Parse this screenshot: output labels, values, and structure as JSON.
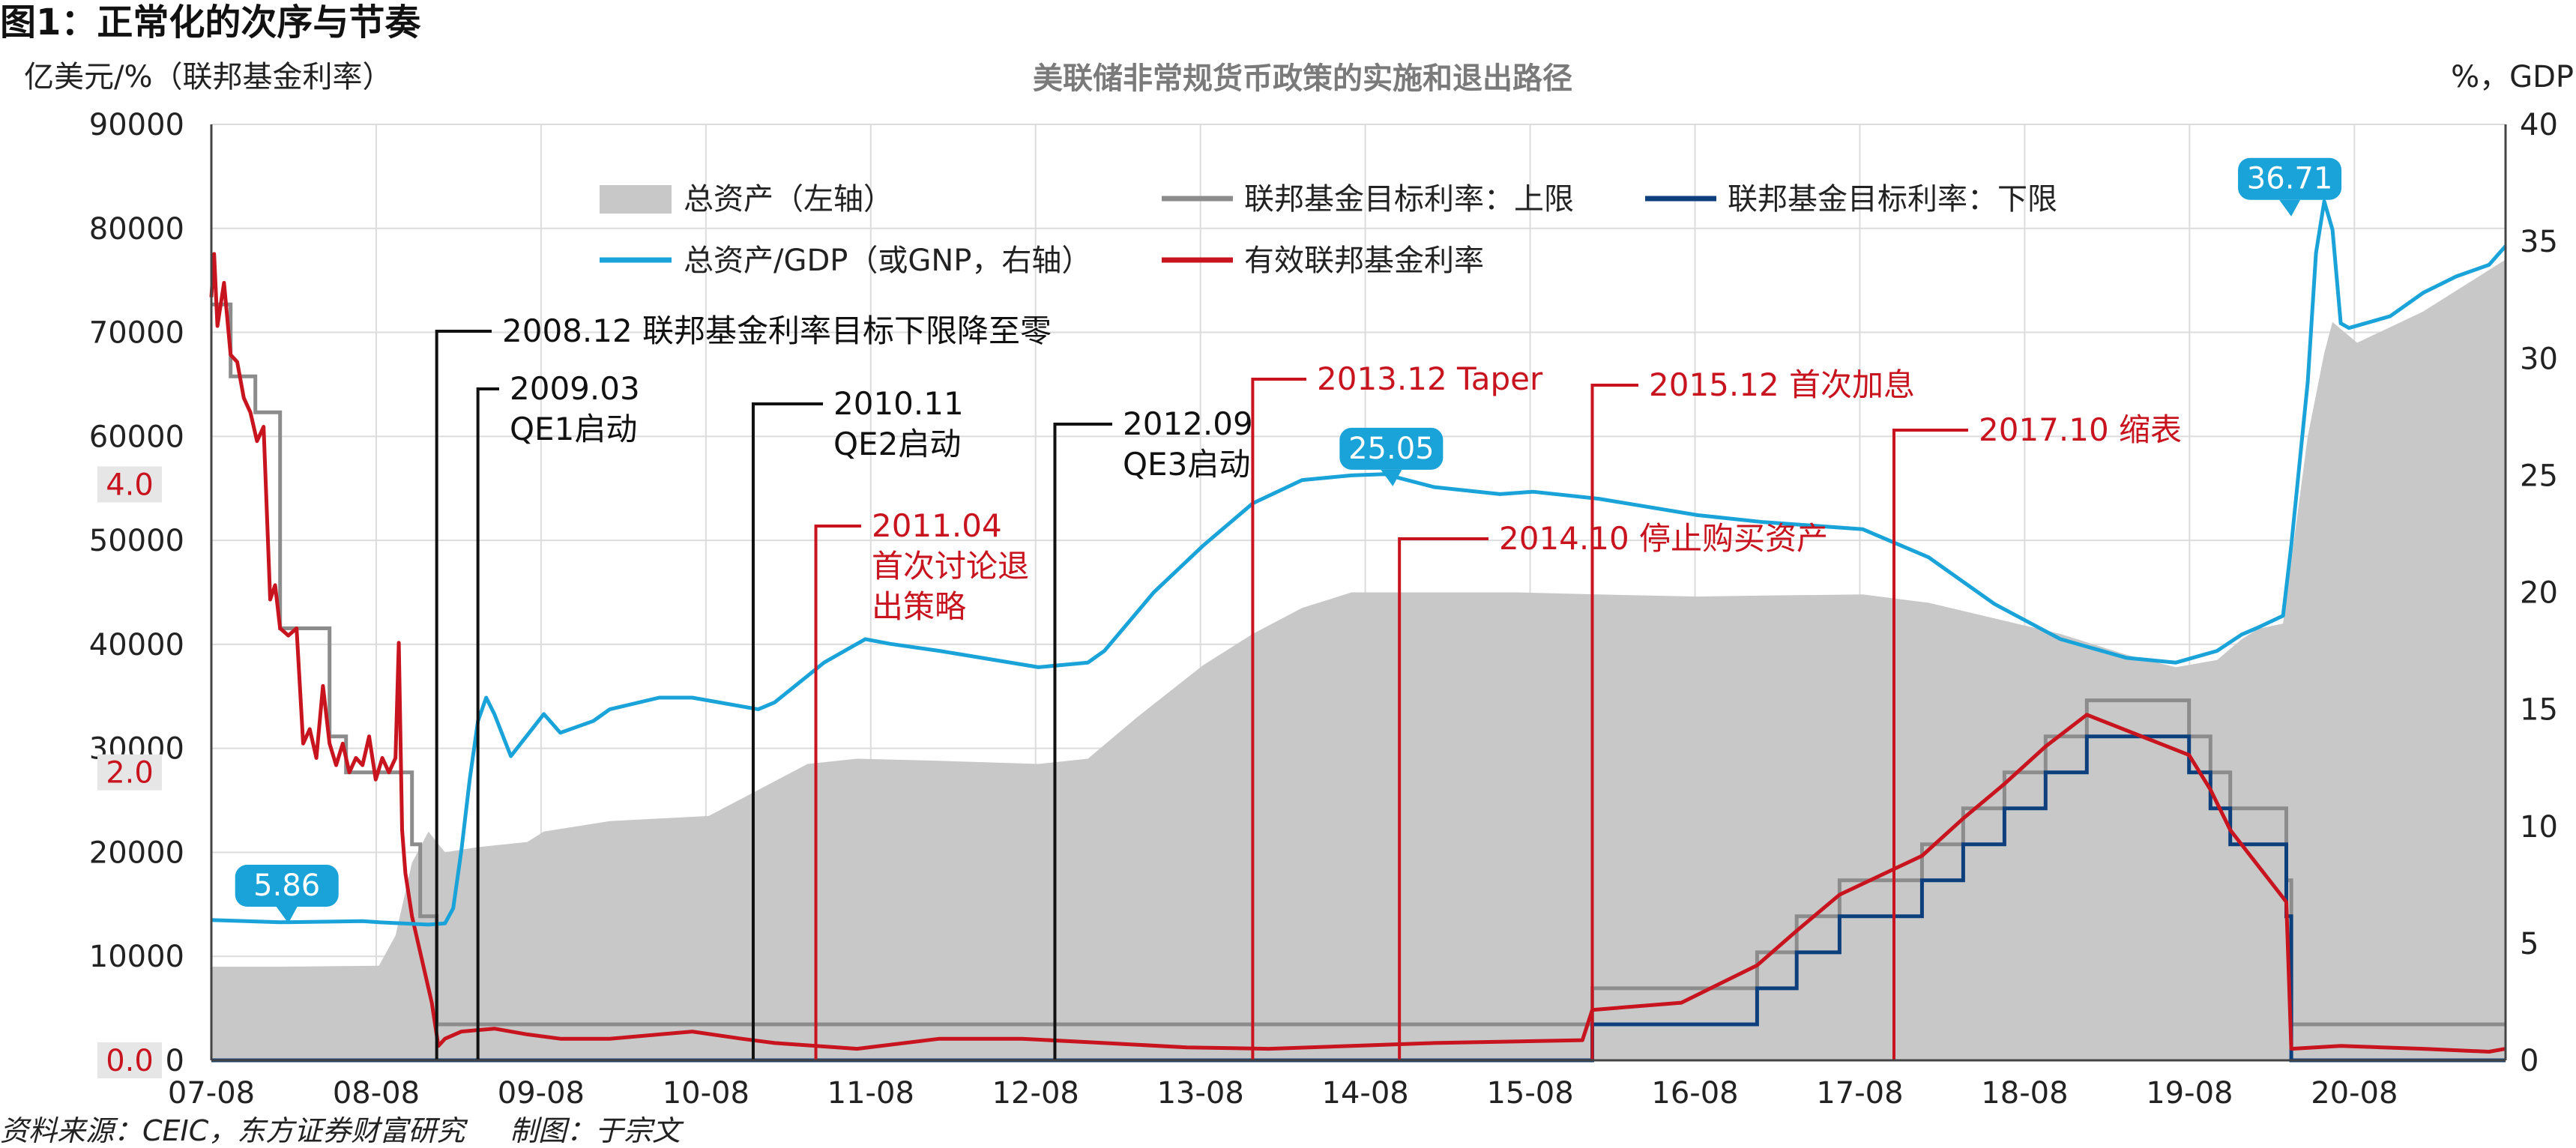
{
  "figure": {
    "title": "图1：正常化的次序与节奏",
    "subtitle": "美联储非常规货币政策的实施和退出路径",
    "left_unit": "亿美元/%（联邦基金利率）",
    "right_unit": "%，GDP",
    "source": "资料来源：CEIC，东方证券财富研究",
    "credit": "制图：于宗文"
  },
  "colors": {
    "assets": "#c8c8c8",
    "upper": "#8c8c8c",
    "lower": "#0d3f7d",
    "gdp": "#1aa3d9",
    "effr": "#c8141e",
    "annotation_black": "#111111",
    "annotation_red": "#c8141e"
  },
  "chart_data": {
    "type": "area",
    "title": "美联储非常规货币政策的实施和退出路径",
    "ylabel": "亿美元/%（联邦基金利率）",
    "y2label": "%，GDP",
    "xlim": [
      2007.583,
      2021.5
    ],
    "ylim": [
      0,
      90000
    ],
    "y2lim": [
      0,
      40
    ],
    "grid": true,
    "legend_position": "top",
    "x_ticks": [
      {
        "label": "07-08",
        "x": 2007.583
      },
      {
        "label": "08-08",
        "x": 2008.583
      },
      {
        "label": "09-08",
        "x": 2009.583
      },
      {
        "label": "10-08",
        "x": 2010.583
      },
      {
        "label": "11-08",
        "x": 2011.583
      },
      {
        "label": "12-08",
        "x": 2012.583
      },
      {
        "label": "13-08",
        "x": 2013.583
      },
      {
        "label": "14-08",
        "x": 2014.583
      },
      {
        "label": "15-08",
        "x": 2015.583
      },
      {
        "label": "16-08",
        "x": 2016.583
      },
      {
        "label": "17-08",
        "x": 2017.583
      },
      {
        "label": "18-08",
        "x": 2018.583
      },
      {
        "label": "19-08",
        "x": 2019.583
      },
      {
        "label": "20-08",
        "x": 2020.583
      }
    ],
    "y_ticks": [
      "0",
      "10000",
      "20000",
      "30000",
      "40000",
      "50000",
      "60000",
      "70000",
      "80000",
      "90000"
    ],
    "y2_ticks": [
      "0",
      "5",
      "10",
      "15",
      "20",
      "25",
      "30",
      "35",
      "40"
    ],
    "rate_ticks": [
      {
        "label": "0.0",
        "value": 0.0
      },
      {
        "label": "2.0",
        "value": 2.0
      },
      {
        "label": "4.0",
        "value": 4.0
      }
    ],
    "series": [
      {
        "name": "总资产（左轴）",
        "axis": "left",
        "type": "area",
        "points": [
          [
            2007.583,
            9000
          ],
          [
            2008.0,
            9000
          ],
          [
            2008.6,
            9100
          ],
          [
            2008.7,
            12000
          ],
          [
            2008.8,
            19000
          ],
          [
            2008.9,
            22000
          ],
          [
            2009.0,
            20000
          ],
          [
            2009.2,
            20500
          ],
          [
            2009.5,
            21000
          ],
          [
            2009.6,
            22000
          ],
          [
            2010.0,
            23000
          ],
          [
            2010.6,
            23500
          ],
          [
            2010.9,
            26000
          ],
          [
            2011.2,
            28500
          ],
          [
            2011.5,
            29000
          ],
          [
            2012.0,
            28800
          ],
          [
            2012.6,
            28500
          ],
          [
            2012.9,
            29000
          ],
          [
            2013.2,
            33000
          ],
          [
            2013.6,
            38000
          ],
          [
            2013.9,
            41000
          ],
          [
            2014.2,
            43500
          ],
          [
            2014.5,
            45000
          ],
          [
            2014.9,
            45000
          ],
          [
            2015.5,
            45000
          ],
          [
            2016.0,
            44800
          ],
          [
            2016.6,
            44600
          ],
          [
            2017.0,
            44700
          ],
          [
            2017.6,
            44800
          ],
          [
            2018.0,
            44000
          ],
          [
            2018.4,
            42500
          ],
          [
            2018.8,
            41000
          ],
          [
            2019.2,
            39000
          ],
          [
            2019.5,
            37800
          ],
          [
            2019.75,
            38500
          ],
          [
            2019.9,
            40500
          ],
          [
            2020.0,
            41500
          ],
          [
            2020.15,
            42000
          ],
          [
            2020.2,
            48000
          ],
          [
            2020.3,
            60000
          ],
          [
            2020.4,
            68000
          ],
          [
            2020.45,
            71000
          ],
          [
            2020.6,
            69000
          ],
          [
            2020.8,
            70500
          ],
          [
            2021.0,
            72000
          ],
          [
            2021.2,
            74000
          ],
          [
            2021.4,
            76000
          ],
          [
            2021.5,
            77000
          ]
        ]
      },
      {
        "name": "联邦基金目标利率：上限",
        "axis": "rate",
        "type": "step",
        "points": [
          [
            2007.583,
            5.25
          ],
          [
            2007.7,
            4.75
          ],
          [
            2007.85,
            4.5
          ],
          [
            2008.0,
            3.0
          ],
          [
            2008.3,
            2.25
          ],
          [
            2008.4,
            2.0
          ],
          [
            2008.8,
            1.5
          ],
          [
            2008.85,
            1.0
          ],
          [
            2008.95,
            0.25
          ],
          [
            2015.96,
            0.5
          ],
          [
            2016.96,
            0.75
          ],
          [
            2017.2,
            1.0
          ],
          [
            2017.46,
            1.25
          ],
          [
            2017.96,
            1.5
          ],
          [
            2018.21,
            1.75
          ],
          [
            2018.46,
            2.0
          ],
          [
            2018.71,
            2.25
          ],
          [
            2018.96,
            2.5
          ],
          [
            2019.58,
            2.25
          ],
          [
            2019.71,
            2.0
          ],
          [
            2019.83,
            1.75
          ],
          [
            2020.17,
            1.25
          ],
          [
            2020.2,
            0.25
          ],
          [
            2021.5,
            0.25
          ]
        ]
      },
      {
        "name": "联邦基金目标利率：下限",
        "axis": "rate",
        "type": "step",
        "points": [
          [
            2007.583,
            0.0
          ],
          [
            2008.95,
            0.0
          ],
          [
            2015.96,
            0.25
          ],
          [
            2016.96,
            0.5
          ],
          [
            2017.2,
            0.75
          ],
          [
            2017.46,
            1.0
          ],
          [
            2017.96,
            1.25
          ],
          [
            2018.21,
            1.5
          ],
          [
            2018.46,
            1.75
          ],
          [
            2018.71,
            2.0
          ],
          [
            2018.96,
            2.25
          ],
          [
            2019.58,
            2.0
          ],
          [
            2019.71,
            1.75
          ],
          [
            2019.83,
            1.5
          ],
          [
            2020.17,
            1.0
          ],
          [
            2020.2,
            0.0
          ],
          [
            2021.5,
            0.0
          ]
        ]
      },
      {
        "name": "有效联邦基金利率",
        "axis": "rate",
        "type": "line",
        "points": [
          [
            2007.583,
            5.3
          ],
          [
            2007.6,
            5.6
          ],
          [
            2007.62,
            5.1
          ],
          [
            2007.66,
            5.4
          ],
          [
            2007.7,
            4.9
          ],
          [
            2007.74,
            4.85
          ],
          [
            2007.78,
            4.6
          ],
          [
            2007.82,
            4.5
          ],
          [
            2007.86,
            4.3
          ],
          [
            2007.9,
            4.4
          ],
          [
            2007.94,
            3.2
          ],
          [
            2007.97,
            3.3
          ],
          [
            2008.0,
            3.0
          ],
          [
            2008.05,
            2.95
          ],
          [
            2008.1,
            3.0
          ],
          [
            2008.14,
            2.2
          ],
          [
            2008.18,
            2.3
          ],
          [
            2008.22,
            2.1
          ],
          [
            2008.26,
            2.6
          ],
          [
            2008.3,
            2.2
          ],
          [
            2008.34,
            2.05
          ],
          [
            2008.38,
            2.2
          ],
          [
            2008.42,
            2.0
          ],
          [
            2008.46,
            2.1
          ],
          [
            2008.5,
            2.05
          ],
          [
            2008.54,
            2.25
          ],
          [
            2008.58,
            1.95
          ],
          [
            2008.62,
            2.1
          ],
          [
            2008.66,
            2.0
          ],
          [
            2008.7,
            2.1
          ],
          [
            2008.72,
            2.9
          ],
          [
            2008.74,
            1.6
          ],
          [
            2008.76,
            1.3
          ],
          [
            2008.8,
            1.0
          ],
          [
            2008.84,
            0.8
          ],
          [
            2008.88,
            0.6
          ],
          [
            2008.92,
            0.4
          ],
          [
            2008.96,
            0.1
          ],
          [
            2009.0,
            0.15
          ],
          [
            2009.1,
            0.2
          ],
          [
            2009.3,
            0.22
          ],
          [
            2009.5,
            0.18
          ],
          [
            2009.7,
            0.15
          ],
          [
            2010.0,
            0.15
          ],
          [
            2010.5,
            0.2
          ],
          [
            2010.8,
            0.15
          ],
          [
            2011.0,
            0.12
          ],
          [
            2011.5,
            0.08
          ],
          [
            2012.0,
            0.15
          ],
          [
            2012.5,
            0.15
          ],
          [
            2013.0,
            0.12
          ],
          [
            2013.5,
            0.09
          ],
          [
            2014.0,
            0.08
          ],
          [
            2014.5,
            0.1
          ],
          [
            2015.0,
            0.12
          ],
          [
            2015.9,
            0.14
          ],
          [
            2015.96,
            0.35
          ],
          [
            2016.5,
            0.4
          ],
          [
            2016.96,
            0.66
          ],
          [
            2017.2,
            0.9
          ],
          [
            2017.46,
            1.15
          ],
          [
            2017.96,
            1.42
          ],
          [
            2018.21,
            1.68
          ],
          [
            2018.46,
            1.92
          ],
          [
            2018.71,
            2.18
          ],
          [
            2018.96,
            2.4
          ],
          [
            2019.58,
            2.12
          ],
          [
            2019.71,
            1.88
          ],
          [
            2019.83,
            1.6
          ],
          [
            2020.17,
            1.1
          ],
          [
            2020.2,
            0.08
          ],
          [
            2020.5,
            0.1
          ],
          [
            2021.0,
            0.08
          ],
          [
            2021.4,
            0.06
          ],
          [
            2021.5,
            0.08
          ]
        ]
      },
      {
        "name": "总资产/GDP（或GNP，右轴）",
        "axis": "right",
        "type": "line",
        "points": [
          [
            2007.583,
            6.0
          ],
          [
            2008.0,
            5.9
          ],
          [
            2008.5,
            5.95
          ],
          [
            2008.6,
            5.9
          ],
          [
            2008.9,
            5.8
          ],
          [
            2009.0,
            5.85
          ],
          [
            2009.05,
            6.5
          ],
          [
            2009.1,
            9.0
          ],
          [
            2009.15,
            12.0
          ],
          [
            2009.2,
            14.5
          ],
          [
            2009.25,
            15.5
          ],
          [
            2009.3,
            14.8
          ],
          [
            2009.4,
            13.0
          ],
          [
            2009.6,
            14.8
          ],
          [
            2009.7,
            14.0
          ],
          [
            2009.9,
            14.5
          ],
          [
            2010.0,
            15.0
          ],
          [
            2010.3,
            15.5
          ],
          [
            2010.5,
            15.5
          ],
          [
            2010.9,
            15.0
          ],
          [
            2011.0,
            15.3
          ],
          [
            2011.3,
            17.0
          ],
          [
            2011.55,
            18.0
          ],
          [
            2011.7,
            17.8
          ],
          [
            2012.0,
            17.5
          ],
          [
            2012.6,
            16.8
          ],
          [
            2012.9,
            17.0
          ],
          [
            2013.0,
            17.5
          ],
          [
            2013.3,
            20.0
          ],
          [
            2013.6,
            22.0
          ],
          [
            2013.9,
            23.8
          ],
          [
            2014.2,
            24.8
          ],
          [
            2014.5,
            25.0
          ],
          [
            2014.7,
            25.05
          ],
          [
            2015.0,
            24.5
          ],
          [
            2015.4,
            24.2
          ],
          [
            2015.6,
            24.3
          ],
          [
            2016.0,
            24.0
          ],
          [
            2016.6,
            23.3
          ],
          [
            2017.0,
            23.0
          ],
          [
            2017.6,
            22.7
          ],
          [
            2018.0,
            21.5
          ],
          [
            2018.4,
            19.5
          ],
          [
            2018.8,
            18.0
          ],
          [
            2019.2,
            17.2
          ],
          [
            2019.5,
            17.0
          ],
          [
            2019.75,
            17.5
          ],
          [
            2019.9,
            18.2
          ],
          [
            2020.0,
            18.5
          ],
          [
            2020.15,
            19.0
          ],
          [
            2020.2,
            22.0
          ],
          [
            2020.3,
            29.0
          ],
          [
            2020.35,
            34.5
          ],
          [
            2020.4,
            36.71
          ],
          [
            2020.45,
            35.5
          ],
          [
            2020.5,
            31.5
          ],
          [
            2020.55,
            31.3
          ],
          [
            2020.8,
            31.8
          ],
          [
            2021.0,
            32.8
          ],
          [
            2021.2,
            33.5
          ],
          [
            2021.4,
            34.0
          ],
          [
            2021.5,
            34.8
          ]
        ]
      }
    ],
    "callouts": [
      {
        "label": "5.86",
        "series": "总资产/GDP（或GNP，右轴）",
        "x": 2008.0,
        "value": 5.86
      },
      {
        "label": "25.05",
        "series": "总资产/GDP（或GNP，右轴）",
        "x": 2014.7,
        "value": 25.05
      },
      {
        "label": "36.71",
        "series": "总资产/GDP（或GNP，右轴）",
        "x": 2020.4,
        "value": 36.71
      }
    ],
    "annotations": [
      {
        "date": "2008.12",
        "text": "联邦基金利率目标下限降至零",
        "color": "black",
        "x": 2008.95
      },
      {
        "date": "2009.03",
        "text": "QE1启动",
        "color": "black",
        "x": 2009.2
      },
      {
        "date": "2010.11",
        "text": "QE2启动",
        "color": "black",
        "x": 2010.87
      },
      {
        "date": "2012.09",
        "text": "QE3启动",
        "color": "black",
        "x": 2012.7
      },
      {
        "date": "2011.04",
        "text": "首次讨论退出策略",
        "color": "red",
        "x": 2011.25
      },
      {
        "date": "2013.12",
        "text": "Taper",
        "color": "red",
        "x": 2013.9
      },
      {
        "date": "2014.10",
        "text": "停止购买资产",
        "color": "red",
        "x": 2014.79
      },
      {
        "date": "2015.12",
        "text": "首次加息",
        "color": "red",
        "x": 2015.96
      },
      {
        "date": "2017.10",
        "text": "缩表",
        "color": "red",
        "x": 2017.79
      }
    ]
  }
}
